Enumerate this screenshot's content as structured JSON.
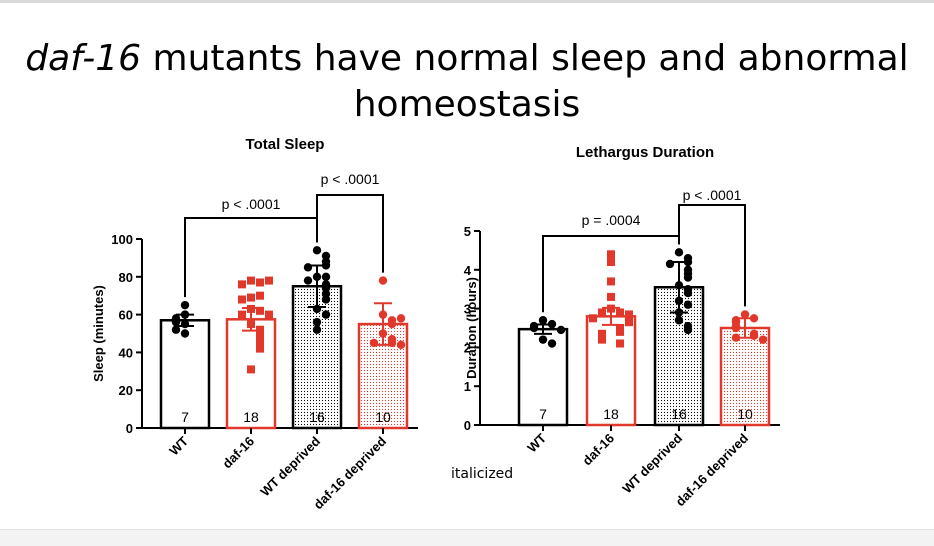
{
  "title": {
    "italic": "daf-16",
    "rest": " mutants have normal sleep and abnormal homeostasis"
  },
  "note": "italicized",
  "colors": {
    "black": "#000000",
    "red": "#e2382c"
  },
  "chart_data": [
    {
      "type": "bar",
      "title": "Total Sleep",
      "ylabel": "Sleep (minutes)",
      "xlabel": "",
      "ylim": [
        0,
        100
      ],
      "yticks": [
        0,
        20,
        40,
        60,
        80,
        100
      ],
      "ytick_labels": [
        "0",
        "20",
        "40",
        "60",
        "80",
        "100"
      ],
      "categories": [
        "WT",
        "daf-16",
        "WT deprived",
        "daf-16 deprived"
      ],
      "series_colors": [
        "black",
        "red",
        "black",
        "red"
      ],
      "fill": [
        "white",
        "white",
        "dotted",
        "dotted"
      ],
      "means": [
        57,
        57.5,
        75,
        55
      ],
      "errors": [
        3,
        6,
        11,
        11
      ],
      "n_labels": [
        "7",
        "18",
        "16",
        "10"
      ],
      "points": [
        [
          55,
          65,
          60,
          58,
          56,
          50,
          52
        ],
        [
          78,
          77,
          76,
          78,
          69,
          70,
          68,
          63,
          62,
          60,
          60,
          55,
          52,
          50,
          47,
          45,
          42,
          31
        ],
        [
          94,
          91,
          88,
          86,
          85,
          80,
          80,
          78,
          76,
          74,
          71,
          68,
          63,
          60,
          56,
          52
        ],
        [
          78,
          60,
          57,
          55,
          58,
          50,
          47,
          45,
          45,
          44
        ]
      ],
      "comparisons": [
        {
          "from": 0,
          "to": 2,
          "label": "p < .0001"
        },
        {
          "from": 2,
          "to": 3,
          "label": "p < .0001"
        }
      ]
    },
    {
      "type": "bar",
      "title": "Lethargus Duration",
      "ylabel": "Duration (hours)",
      "xlabel": "",
      "ylim": [
        0,
        5
      ],
      "yticks": [
        0,
        1,
        2,
        3,
        4,
        5
      ],
      "ytick_labels": [
        "0",
        "1",
        "2",
        "3",
        "4",
        "5"
      ],
      "categories": [
        "WT",
        "daf-16",
        "WT deprived",
        "daf-16 deprived"
      ],
      "series_colors": [
        "black",
        "red",
        "black",
        "red"
      ],
      "fill": [
        "white",
        "white",
        "dotted",
        "dotted"
      ],
      "means": [
        2.47,
        2.8,
        3.55,
        2.5
      ],
      "errors": [
        0.12,
        0.22,
        0.65,
        0.25
      ],
      "n_labels": [
        "7",
        "18",
        "16",
        "10"
      ],
      "points": [
        [
          2.7,
          2.6,
          2.55,
          2.5,
          2.45,
          2.2,
          2.1
        ],
        [
          4.4,
          4.2,
          3.7,
          3.3,
          3.0,
          2.9,
          2.9,
          2.85,
          2.8,
          2.75,
          2.7,
          2.65,
          2.5,
          2.4,
          2.35,
          2.3,
          2.2,
          2.1
        ],
        [
          4.45,
          4.3,
          4.2,
          4.15,
          4.0,
          3.9,
          3.8,
          3.6,
          3.5,
          3.4,
          3.2,
          3.1,
          2.9,
          2.7,
          2.55,
          2.45
        ],
        [
          2.85,
          2.75,
          2.7,
          2.65,
          2.55,
          2.5,
          2.35,
          2.3,
          2.25,
          2.2
        ]
      ],
      "comparisons": [
        {
          "from": 0,
          "to": 2,
          "label": "p = .0004"
        },
        {
          "from": 2,
          "to": 3,
          "label": "p < .0001"
        }
      ]
    }
  ]
}
